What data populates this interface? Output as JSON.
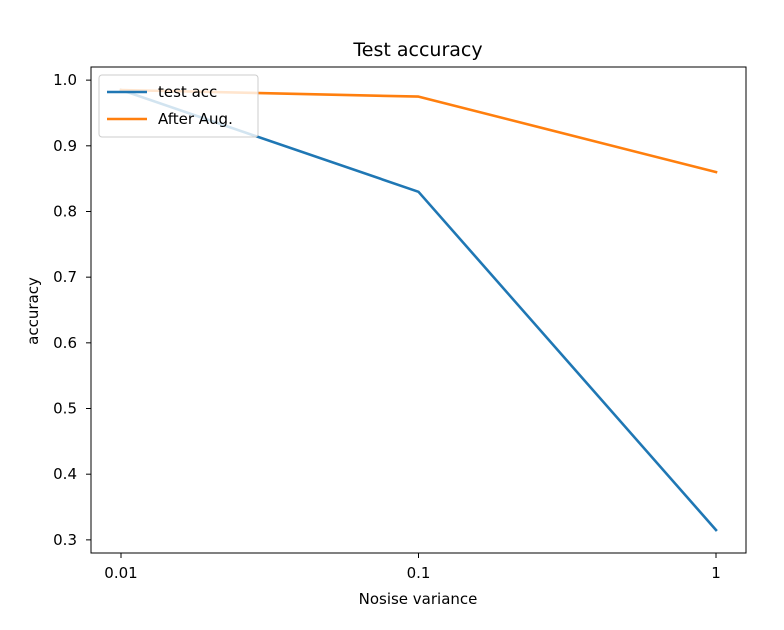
{
  "chart_data": {
    "type": "line",
    "title": "Test accuracy",
    "xlabel": "Nosise variance",
    "ylabel": "accuracy",
    "x": [
      0.01,
      0.1,
      1
    ],
    "x_tick_labels": [
      "0.01",
      "0.1",
      "1"
    ],
    "x_scale": "log",
    "ylim": [
      0.28,
      1.02
    ],
    "y_ticks": [
      0.3,
      0.4,
      0.5,
      0.6,
      0.7,
      0.8,
      0.9,
      1.0
    ],
    "y_tick_labels": [
      "0.3",
      "0.4",
      "0.5",
      "0.6",
      "0.7",
      "0.8",
      "0.9",
      "1.0"
    ],
    "grid": false,
    "legend_position": "upper-left",
    "series": [
      {
        "name": "test acc",
        "values": [
          0.985,
          0.83,
          0.315
        ],
        "color": "#1f77b4"
      },
      {
        "name": "After Aug.",
        "values": [
          0.985,
          0.975,
          0.86
        ],
        "color": "#ff7f0e"
      }
    ]
  }
}
